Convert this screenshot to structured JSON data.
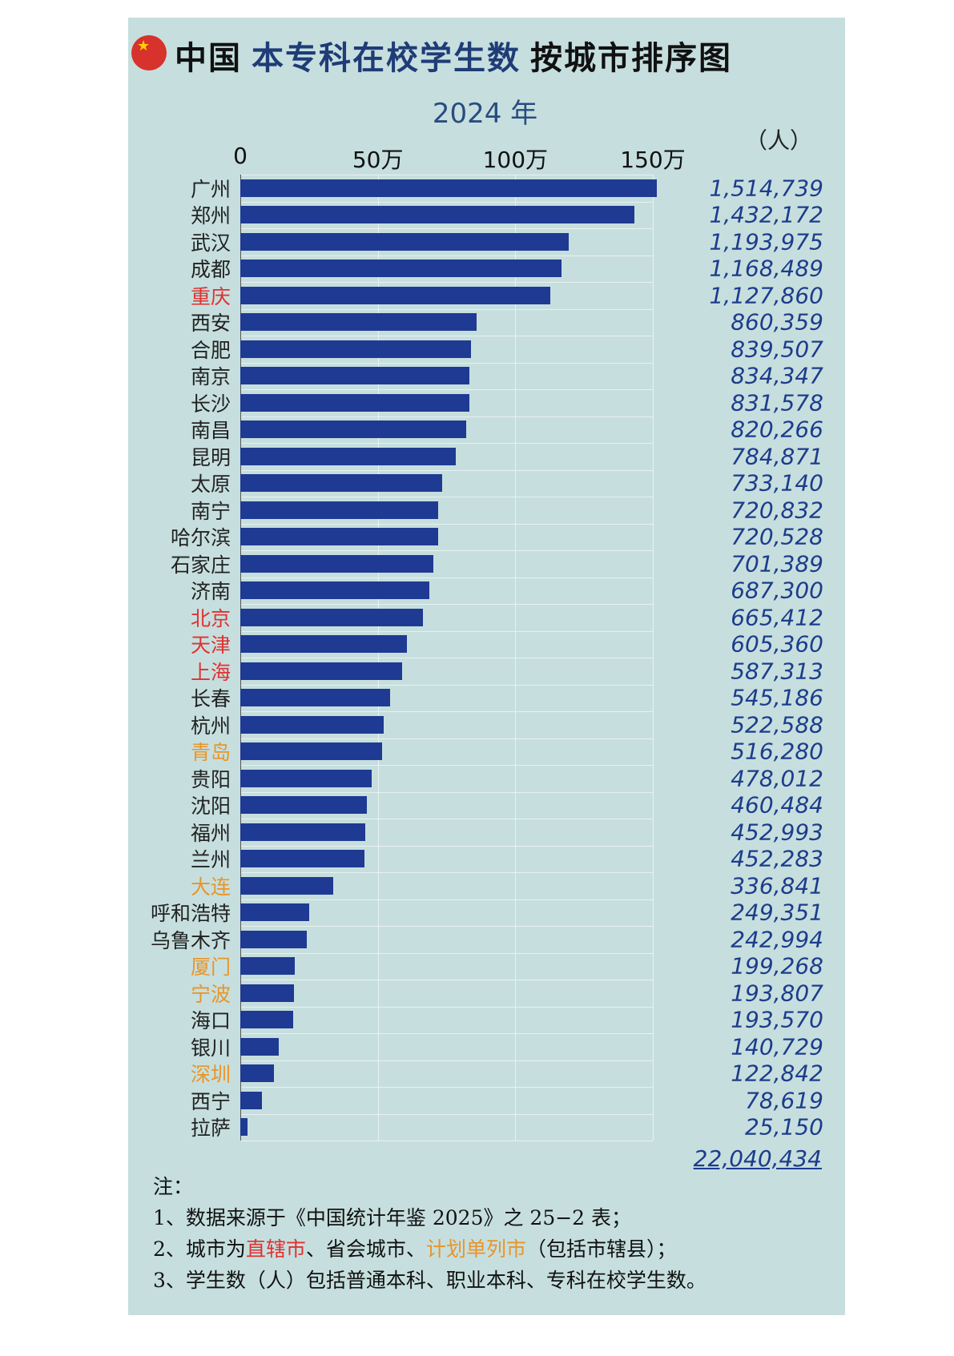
{
  "title": {
    "part1": "中国",
    "part2": "本专科在校学生数",
    "part3": "按城市排序图",
    "flag_icon": "china-flag-icon"
  },
  "colors": {
    "bar": "#1f3a93",
    "municipality": "#e03131",
    "separately_planned": "#e8952a",
    "background": "#c6dfde"
  },
  "chart_data": {
    "type": "bar",
    "orientation": "horizontal",
    "title": "中国 本专科在校学生数 按城市排序图",
    "subtitle": "2024 年",
    "unit": "（人）",
    "xlim": [
      0,
      1500000
    ],
    "x_ticks": [
      {
        "value": 0,
        "label": "0"
      },
      {
        "value": 500000,
        "label": "50万"
      },
      {
        "value": 1000000,
        "label": "100万"
      },
      {
        "value": 1500000,
        "label": "150万"
      }
    ],
    "grid": true,
    "categories": [
      "广州",
      "郑州",
      "武汉",
      "成都",
      "重庆",
      "西安",
      "合肥",
      "南京",
      "长沙",
      "南昌",
      "昆明",
      "太原",
      "南宁",
      "哈尔滨",
      "石家庄",
      "济南",
      "北京",
      "天津",
      "上海",
      "长春",
      "杭州",
      "青岛",
      "贵阳",
      "沈阳",
      "福州",
      "兰州",
      "大连",
      "呼和浩特",
      "乌鲁木齐",
      "厦门",
      "宁波",
      "海口",
      "银川",
      "深圳",
      "西宁",
      "拉萨"
    ],
    "values": [
      1514739,
      1432172,
      1193975,
      1168489,
      1127860,
      860359,
      839507,
      834347,
      831578,
      820266,
      784871,
      733140,
      720832,
      720528,
      701389,
      687300,
      665412,
      605360,
      587313,
      545186,
      522588,
      516280,
      478012,
      460484,
      452993,
      452283,
      336841,
      249351,
      242994,
      199268,
      193807,
      193570,
      140729,
      122842,
      78619,
      25150
    ],
    "value_labels": [
      "1,514,739",
      "1,432,172",
      "1,193,975",
      "1,168,489",
      "1,127,860",
      "860,359",
      "839,507",
      "834,347",
      "831,578",
      "820,266",
      "784,871",
      "733,140",
      "720,832",
      "720,528",
      "701,389",
      "687,300",
      "665,412",
      "605,360",
      "587,313",
      "545,186",
      "522,588",
      "516,280",
      "478,012",
      "460,484",
      "452,993",
      "452,283",
      "336,841",
      "249,351",
      "242,994",
      "199,268",
      "193,807",
      "193,570",
      "140,729",
      "122,842",
      "78,619",
      "25,150"
    ],
    "category_types": [
      "",
      "",
      "",
      "",
      "municipality",
      "",
      "",
      "",
      "",
      "",
      "",
      "",
      "",
      "",
      "",
      "",
      "municipality",
      "municipality",
      "municipality",
      "",
      "",
      "separately_planned",
      "",
      "",
      "",
      "",
      "separately_planned",
      "",
      "",
      "separately_planned",
      "separately_planned",
      "",
      "",
      "separately_planned",
      "",
      ""
    ],
    "total_label": "22,040,434"
  },
  "notes": {
    "heading": "注：",
    "line1": "1、数据来源于《中国统计年鉴 2025》之 25−2 表；",
    "line2_a": "2、城市为",
    "line2_red": "直辖市",
    "line2_b": "、省会城市、",
    "line2_orange": "计划单列市",
    "line2_c": "（包括市辖县）；",
    "line3": "3、学生数（人）包括普通本科、职业本科、专科在校学生数。"
  }
}
